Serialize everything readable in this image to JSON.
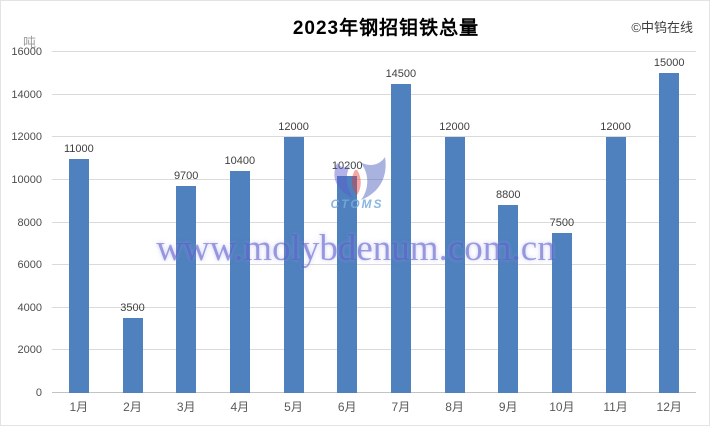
{
  "meta": {
    "copyright": "©中钨在线",
    "watermark_text": "www.molybdenum.com.cn",
    "watermark_logo_text": "CTOMS"
  },
  "chart_data": {
    "type": "bar",
    "title": "2023年钢招钼铁总量",
    "categories": [
      "1月",
      "2月",
      "3月",
      "4月",
      "5月",
      "6月",
      "7月",
      "8月",
      "9月",
      "10月",
      "11月",
      "12月"
    ],
    "values": [
      11000,
      3500,
      9700,
      10400,
      12000,
      10200,
      14500,
      12000,
      8800,
      7500,
      12000,
      15000
    ],
    "xlabel": "",
    "ylabel": "吨",
    "ylim": [
      0,
      16000
    ],
    "ytick_step": 2000,
    "grid": true,
    "legend": "none",
    "data_labels": true,
    "bar_color": "#4e81bd",
    "gridline_color": "#dadada",
    "title_color": "#000000",
    "label_color": "#3f3f3f",
    "watermark_color": "#5858c8"
  }
}
